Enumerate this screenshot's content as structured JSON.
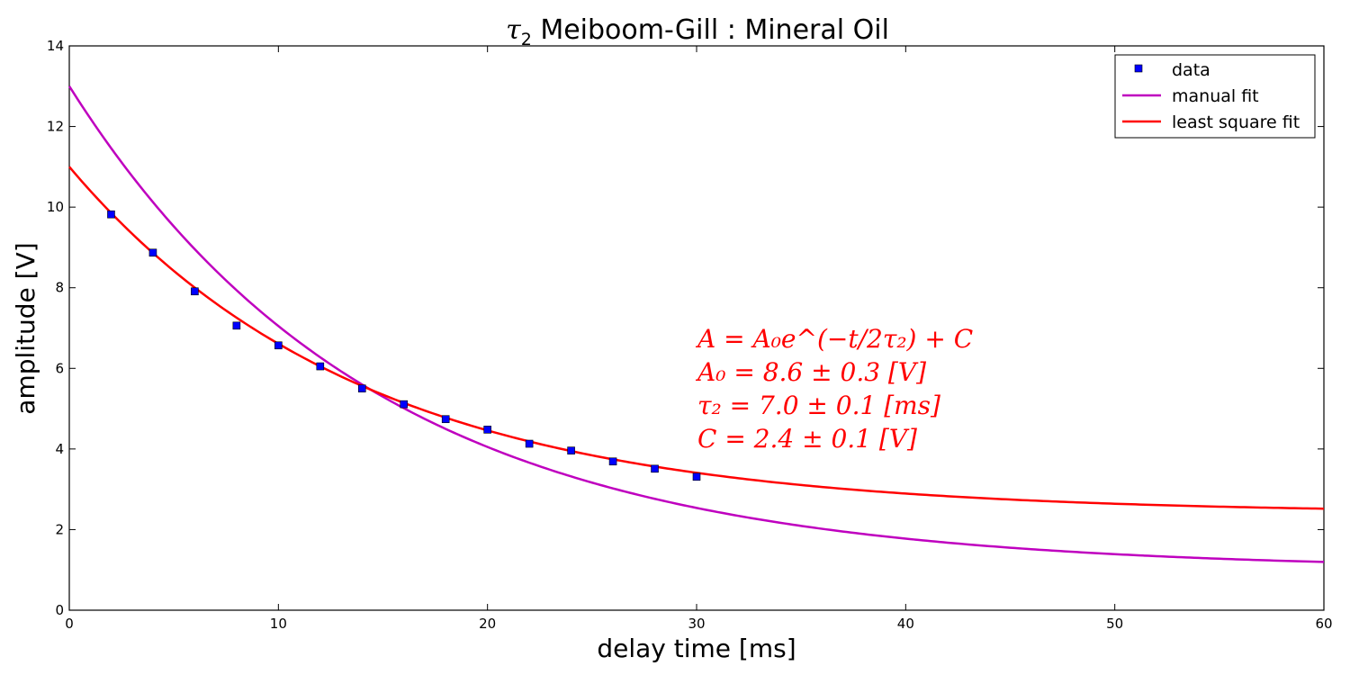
{
  "chart_data": {
    "type": "scatter",
    "title_symbol": "τ",
    "title_subscript": "2",
    "title_text": " Meiboom-Gill : Mineral Oil",
    "xlabel": "delay time [ms]",
    "ylabel": "amplitude [V]",
    "xlim": [
      0,
      60
    ],
    "ylim": [
      0,
      14
    ],
    "xticks": [
      0,
      10,
      20,
      30,
      40,
      50,
      60
    ],
    "yticks": [
      0,
      2,
      4,
      6,
      8,
      10,
      12,
      14
    ],
    "grid": false,
    "legend_position": "top-right",
    "series": [
      {
        "name": "data",
        "kind": "markers",
        "color": "#0000ff",
        "x": [
          2,
          4,
          6,
          8,
          10,
          12,
          14,
          16,
          18,
          20,
          22,
          24,
          26,
          28,
          30
        ],
        "y": [
          9.82,
          8.87,
          7.91,
          7.06,
          6.57,
          6.05,
          5.5,
          5.11,
          4.74,
          4.48,
          4.13,
          3.96,
          3.69,
          3.51,
          3.31
        ]
      },
      {
        "name": "manual fit",
        "kind": "curve",
        "color": "#bf00bf",
        "A0": 12.0,
        "tau2": 7.3,
        "C": 1.0,
        "x_range": [
          0,
          60
        ]
      },
      {
        "name": "least square fit",
        "kind": "curve",
        "color": "#ff0000",
        "A0": 8.6,
        "tau2": 7.0,
        "C": 2.4,
        "x_range": [
          0,
          60
        ]
      }
    ],
    "annotations": {
      "color": "#ff0000",
      "lines": [
        "A = A₀e^(−t/2τ₂) + C",
        "A₀ = 8.6 ± 0.3 [V]",
        "τ₂ = 7.0 ± 0.1 [ms]",
        "C = 2.4 ± 0.1 [V]"
      ]
    }
  }
}
